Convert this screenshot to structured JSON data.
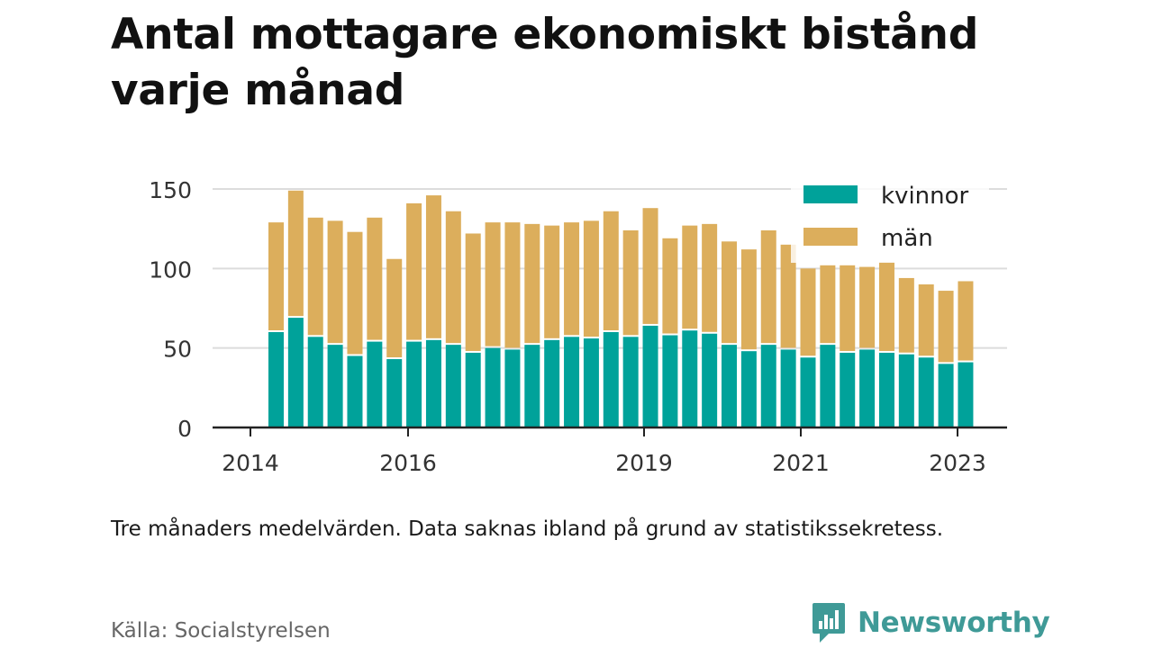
{
  "title": "Antal mottagare ekonomiskt bistånd varje månad",
  "note": "Tre månaders medelvärden. Data saknas ibland på grund av statistikssekretess.",
  "source": "Källa: Socialstyrelsen",
  "brand": "Newsworthy",
  "colors": {
    "kvinnor": "#00a29a",
    "man": "#dcae5c",
    "grid": "#dcdcdc",
    "axis": "#222222",
    "brand": "#3f9a97"
  },
  "chart_data": {
    "type": "bar",
    "stacked": true,
    "yticks": [
      0,
      50,
      100,
      150
    ],
    "ylim": [
      0,
      150
    ],
    "xticks": [
      "2014",
      "2016",
      "2019",
      "2021",
      "2023"
    ],
    "grid": true,
    "legend_position": "top-right",
    "series": [
      {
        "name": "kvinnor",
        "values": [
          60,
          69,
          57,
          52,
          45,
          54,
          43,
          54,
          55,
          52,
          47,
          50,
          49,
          52,
          55,
          57,
          56,
          60,
          57,
          64,
          58,
          61,
          59,
          52,
          48,
          52,
          49,
          44,
          52,
          47,
          49,
          47,
          46,
          44,
          40,
          41
        ]
      },
      {
        "name": "män",
        "values": [
          69,
          80,
          75,
          78,
          78,
          78,
          63,
          87,
          91,
          84,
          75,
          79,
          80,
          76,
          72,
          72,
          74,
          76,
          67,
          74,
          61,
          66,
          69,
          65,
          64,
          72,
          66,
          56,
          50,
          55,
          52,
          57,
          48,
          46,
          46,
          51
        ]
      }
    ]
  }
}
